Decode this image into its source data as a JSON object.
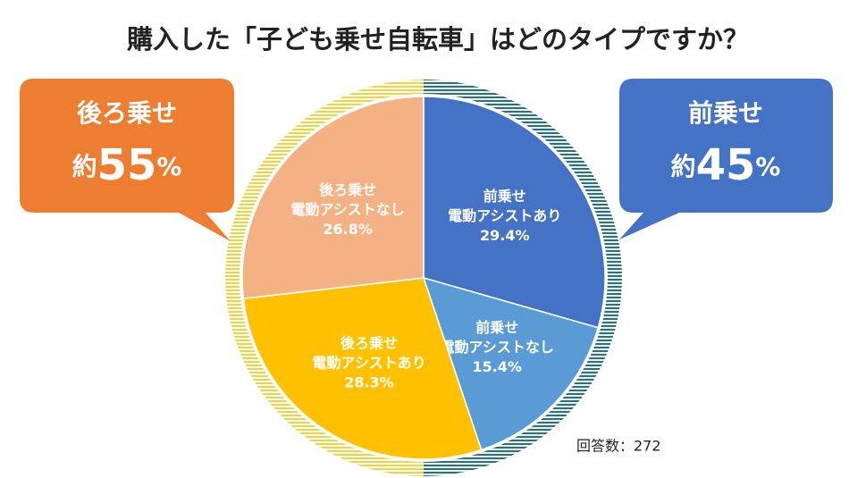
{
  "chart_data": {
    "type": "pie",
    "title": "購入した「子ども乗せ自転車」はどのタイプですか？",
    "categories": [
      [
        "前乗せ",
        "電動アシストあり"
      ],
      [
        "前乗せ",
        "電動アシストなし"
      ],
      [
        "後ろ乗せ",
        "電動アシストあり"
      ],
      [
        "後ろ乗せ",
        "電動アシストなし"
      ]
    ],
    "values": [
      29.4,
      15.4,
      28.3,
      26.8
    ],
    "value_labels": [
      "29.4%",
      "15.4%",
      "28.3%",
      "26.8%"
    ],
    "colors": [
      "#4472c4",
      "#5b9bd5",
      "#ffc000",
      "#f4b183"
    ],
    "callouts": [
      {
        "title": "後ろ乗せ",
        "prefix": "約",
        "value": 55,
        "unit": "%"
      },
      {
        "title": "前乗せ",
        "prefix": "約",
        "value": 45,
        "unit": "%"
      }
    ],
    "note": "回答数：272"
  }
}
